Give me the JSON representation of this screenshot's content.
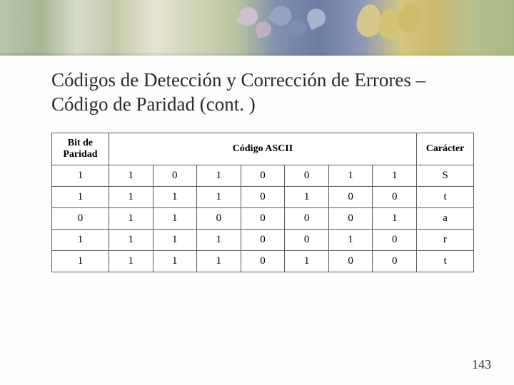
{
  "title": "Códigos de Detección y Corrección de Errores – Código de Paridad (cont. )",
  "table": {
    "headers": {
      "parity": "Bit de Paridad",
      "ascii": "Código ASCII",
      "char": "Carácter"
    },
    "rows": [
      {
        "parity": "1",
        "bits": [
          "1",
          "0",
          "1",
          "0",
          "0",
          "1",
          "1"
        ],
        "char": "S"
      },
      {
        "parity": "1",
        "bits": [
          "1",
          "1",
          "1",
          "0",
          "1",
          "0",
          "0"
        ],
        "char": "t"
      },
      {
        "parity": "0",
        "bits": [
          "1",
          "1",
          "0",
          "0",
          "0",
          "0",
          "1"
        ],
        "char": "a"
      },
      {
        "parity": "1",
        "bits": [
          "1",
          "1",
          "1",
          "0",
          "0",
          "1",
          "0"
        ],
        "char": "r"
      },
      {
        "parity": "1",
        "bits": [
          "1",
          "1",
          "1",
          "0",
          "1",
          "0",
          "0"
        ],
        "char": "t"
      }
    ]
  },
  "page_number": "143",
  "colors": {
    "text": "#2a2a2a",
    "border": "#5a5a5a",
    "bg": "#fdfdfb"
  }
}
